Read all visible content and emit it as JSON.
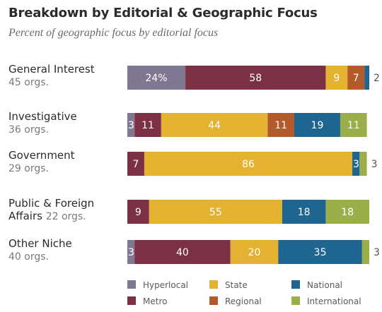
{
  "chart_data": {
    "type": "bar",
    "orientation": "horizontal",
    "stacked": true,
    "title": "Breakdown by Editorial & Geographic Focus",
    "subtitle": "Percent of geographic focus by editorial focus",
    "xlim": [
      0,
      100
    ],
    "grid": false,
    "legend_position": "bottom",
    "categories": [
      {
        "name": "General Interest",
        "count": "45 orgs."
      },
      {
        "name": "Investigative",
        "count": "36 orgs."
      },
      {
        "name": "Government",
        "count": "29 orgs."
      },
      {
        "name": "Public & Foreign",
        "name_line2": "Affairs",
        "count": "22 orgs."
      },
      {
        "name": "Other Niche",
        "count": "40 orgs."
      }
    ],
    "series": [
      {
        "name": "Hyperlocal",
        "color": "#7f7890",
        "values": [
          24,
          3,
          0,
          0,
          3
        ],
        "labels": [
          "24%",
          "3",
          "",
          "",
          "3"
        ]
      },
      {
        "name": "Metro",
        "color": "#7b3045",
        "values": [
          58,
          11,
          7,
          9,
          40
        ],
        "labels": [
          "58",
          "11",
          "7",
          "9",
          "40"
        ]
      },
      {
        "name": "State",
        "color": "#e5b131",
        "values": [
          9,
          44,
          86,
          55,
          20
        ],
        "labels": [
          "9",
          "44",
          "86",
          "55",
          "20"
        ]
      },
      {
        "name": "Regional",
        "color": "#b25a2a",
        "values": [
          7,
          11,
          0,
          0,
          0
        ],
        "labels": [
          "7",
          "11",
          "",
          "",
          ""
        ]
      },
      {
        "name": "National",
        "color": "#1f6591",
        "values": [
          2,
          19,
          3,
          18,
          35
        ],
        "labels": [
          "2",
          "19",
          "3",
          "18",
          "35"
        ]
      },
      {
        "name": "International",
        "color": "#9aae4a",
        "values": [
          0,
          11,
          3,
          18,
          3
        ],
        "labels": [
          "",
          "11",
          "3",
          "18",
          "3"
        ]
      }
    ]
  }
}
